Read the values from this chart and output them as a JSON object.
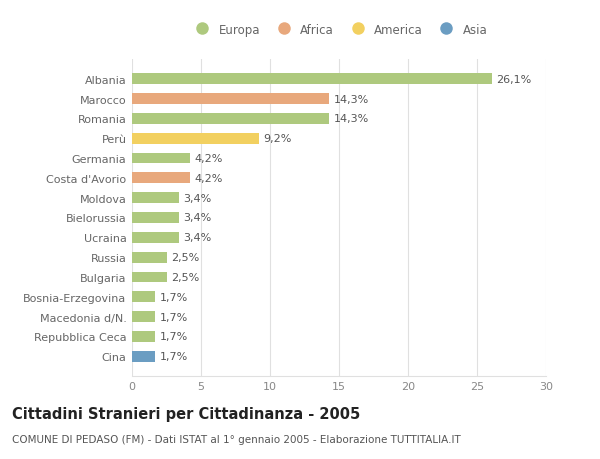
{
  "categories": [
    "Albania",
    "Marocco",
    "Romania",
    "Perù",
    "Germania",
    "Costa d'Avorio",
    "Moldova",
    "Bielorussia",
    "Ucraina",
    "Russia",
    "Bulgaria",
    "Bosnia-Erzegovina",
    "Macedonia d/N.",
    "Repubblica Ceca",
    "Cina"
  ],
  "values": [
    26.1,
    14.3,
    14.3,
    9.2,
    4.2,
    4.2,
    3.4,
    3.4,
    3.4,
    2.5,
    2.5,
    1.7,
    1.7,
    1.7,
    1.7
  ],
  "labels": [
    "26,1%",
    "14,3%",
    "14,3%",
    "9,2%",
    "4,2%",
    "4,2%",
    "3,4%",
    "3,4%",
    "3,4%",
    "2,5%",
    "2,5%",
    "1,7%",
    "1,7%",
    "1,7%",
    "1,7%"
  ],
  "continent": [
    "Europa",
    "Africa",
    "Europa",
    "America",
    "Europa",
    "Africa",
    "Europa",
    "Europa",
    "Europa",
    "Europa",
    "Europa",
    "Europa",
    "Europa",
    "Europa",
    "Asia"
  ],
  "colors": {
    "Europa": "#aec97e",
    "Africa": "#e8a87c",
    "America": "#f2d060",
    "Asia": "#6b9dc2"
  },
  "legend_order": [
    "Europa",
    "Africa",
    "America",
    "Asia"
  ],
  "xlim": [
    0,
    30
  ],
  "xticks": [
    0,
    5,
    10,
    15,
    20,
    25,
    30
  ],
  "title": "Cittadini Stranieri per Cittadinanza - 2005",
  "subtitle": "COMUNE DI PEDASO (FM) - Dati ISTAT al 1° gennaio 2005 - Elaborazione TUTTITALIA.IT",
  "bg_color": "#ffffff",
  "grid_color": "#e0e0e0",
  "bar_height": 0.55,
  "label_fontsize": 8,
  "tick_fontsize": 8,
  "title_fontsize": 10.5,
  "subtitle_fontsize": 7.5
}
